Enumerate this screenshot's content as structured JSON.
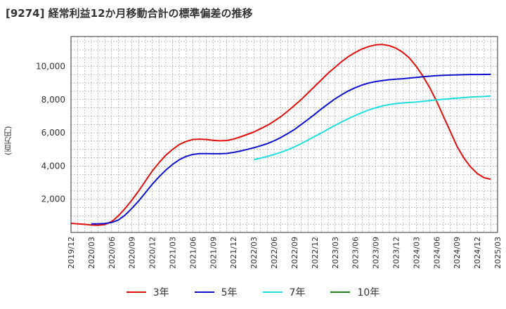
{
  "title": "[9274]  経常利益12か月移動合計の標準偏差の推移",
  "chart_data": {
    "type": "line",
    "title": "[9274]  経常利益12か月移動合計の標準偏差の推移",
    "ylabel": "(百万円)",
    "xlabel": "",
    "ylim": [
      0,
      11800
    ],
    "yticks": [
      2000,
      4000,
      6000,
      8000,
      10000
    ],
    "ytick_labels": [
      "2,000",
      "4,000",
      "6,000",
      "8,000",
      "10,000"
    ],
    "xlim": [
      "2019-12",
      "2025-03"
    ],
    "xtick_labels": [
      "2019/12",
      "2020/03",
      "2020/06",
      "2020/09",
      "2020/12",
      "2021/03",
      "2021/06",
      "2021/09",
      "2021/12",
      "2022/03",
      "2022/06",
      "2022/09",
      "2022/12",
      "2023/03",
      "2023/06",
      "2023/09",
      "2023/12",
      "2024/03",
      "2024/06",
      "2024/09",
      "2024/12",
      "2025/03"
    ],
    "grid": true,
    "legend_position": "bottom",
    "series": [
      {
        "name": "3年",
        "color": "#dd1111",
        "points": [
          [
            "2019-12",
            550
          ],
          [
            "2020-01",
            520
          ],
          [
            "2020-02",
            490
          ],
          [
            "2020-03",
            450
          ],
          [
            "2020-04",
            430
          ],
          [
            "2020-05",
            480
          ],
          [
            "2020-06",
            650
          ],
          [
            "2020-07",
            1000
          ],
          [
            "2020-08",
            1450
          ],
          [
            "2020-09",
            1950
          ],
          [
            "2020-10",
            2500
          ],
          [
            "2020-11",
            3100
          ],
          [
            "2020-12",
            3700
          ],
          [
            "2021-01",
            4200
          ],
          [
            "2021-02",
            4650
          ],
          [
            "2021-03",
            5000
          ],
          [
            "2021-04",
            5300
          ],
          [
            "2021-05",
            5480
          ],
          [
            "2021-06",
            5600
          ],
          [
            "2021-07",
            5620
          ],
          [
            "2021-08",
            5600
          ],
          [
            "2021-09",
            5550
          ],
          [
            "2021-10",
            5520
          ],
          [
            "2021-11",
            5540
          ],
          [
            "2021-12",
            5620
          ],
          [
            "2022-01",
            5750
          ],
          [
            "2022-02",
            5900
          ],
          [
            "2022-03",
            6050
          ],
          [
            "2022-04",
            6250
          ],
          [
            "2022-05",
            6450
          ],
          [
            "2022-06",
            6700
          ],
          [
            "2022-07",
            6980
          ],
          [
            "2022-08",
            7300
          ],
          [
            "2022-09",
            7650
          ],
          [
            "2022-10",
            8000
          ],
          [
            "2022-11",
            8400
          ],
          [
            "2022-12",
            8800
          ],
          [
            "2023-01",
            9200
          ],
          [
            "2023-02",
            9600
          ],
          [
            "2023-03",
            9950
          ],
          [
            "2023-04",
            10300
          ],
          [
            "2023-05",
            10600
          ],
          [
            "2023-06",
            10850
          ],
          [
            "2023-07",
            11050
          ],
          [
            "2023-08",
            11200
          ],
          [
            "2023-09",
            11300
          ],
          [
            "2023-10",
            11320
          ],
          [
            "2023-11",
            11250
          ],
          [
            "2023-12",
            11100
          ],
          [
            "2024-01",
            10850
          ],
          [
            "2024-02",
            10500
          ],
          [
            "2024-03",
            10000
          ],
          [
            "2024-04",
            9400
          ],
          [
            "2024-05",
            8700
          ],
          [
            "2024-06",
            7900
          ],
          [
            "2024-07",
            7000
          ],
          [
            "2024-08",
            6100
          ],
          [
            "2024-09",
            5200
          ],
          [
            "2024-10",
            4500
          ],
          [
            "2024-11",
            3950
          ],
          [
            "2024-12",
            3550
          ],
          [
            "2025-01",
            3300
          ],
          [
            "2025-02",
            3200
          ]
        ]
      },
      {
        "name": "5年",
        "color": "#1111cc",
        "points": [
          [
            "2020-03",
            520
          ],
          [
            "2020-04",
            520
          ],
          [
            "2020-05",
            540
          ],
          [
            "2020-06",
            600
          ],
          [
            "2020-07",
            750
          ],
          [
            "2020-08",
            1050
          ],
          [
            "2020-09",
            1450
          ],
          [
            "2020-10",
            1900
          ],
          [
            "2020-11",
            2400
          ],
          [
            "2020-12",
            2900
          ],
          [
            "2021-01",
            3350
          ],
          [
            "2021-02",
            3750
          ],
          [
            "2021-03",
            4100
          ],
          [
            "2021-04",
            4380
          ],
          [
            "2021-05",
            4580
          ],
          [
            "2021-06",
            4700
          ],
          [
            "2021-07",
            4750
          ],
          [
            "2021-08",
            4750
          ],
          [
            "2021-09",
            4740
          ],
          [
            "2021-10",
            4740
          ],
          [
            "2021-11",
            4760
          ],
          [
            "2021-12",
            4820
          ],
          [
            "2022-01",
            4900
          ],
          [
            "2022-02",
            5000
          ],
          [
            "2022-03",
            5100
          ],
          [
            "2022-04",
            5220
          ],
          [
            "2022-05",
            5350
          ],
          [
            "2022-06",
            5520
          ],
          [
            "2022-07",
            5720
          ],
          [
            "2022-08",
            5950
          ],
          [
            "2022-09",
            6200
          ],
          [
            "2022-10",
            6500
          ],
          [
            "2022-11",
            6800
          ],
          [
            "2022-12",
            7120
          ],
          [
            "2023-01",
            7450
          ],
          [
            "2023-02",
            7750
          ],
          [
            "2023-03",
            8050
          ],
          [
            "2023-04",
            8300
          ],
          [
            "2023-05",
            8530
          ],
          [
            "2023-06",
            8720
          ],
          [
            "2023-07",
            8880
          ],
          [
            "2023-08",
            9000
          ],
          [
            "2023-09",
            9090
          ],
          [
            "2023-10",
            9150
          ],
          [
            "2023-11",
            9200
          ],
          [
            "2023-12",
            9230
          ],
          [
            "2024-01",
            9260
          ],
          [
            "2024-02",
            9300
          ],
          [
            "2024-03",
            9340
          ],
          [
            "2024-04",
            9380
          ],
          [
            "2024-05",
            9410
          ],
          [
            "2024-06",
            9440
          ],
          [
            "2024-07",
            9460
          ],
          [
            "2024-08",
            9480
          ],
          [
            "2024-09",
            9490
          ],
          [
            "2024-10",
            9500
          ],
          [
            "2024-11",
            9510
          ],
          [
            "2024-12",
            9510
          ],
          [
            "2025-01",
            9515
          ],
          [
            "2025-02",
            9520
          ]
        ]
      },
      {
        "name": "7年",
        "color": "#22dddd",
        "points": [
          [
            "2022-03",
            4380
          ],
          [
            "2022-04",
            4480
          ],
          [
            "2022-05",
            4580
          ],
          [
            "2022-06",
            4700
          ],
          [
            "2022-07",
            4830
          ],
          [
            "2022-08",
            4980
          ],
          [
            "2022-09",
            5150
          ],
          [
            "2022-10",
            5350
          ],
          [
            "2022-11",
            5560
          ],
          [
            "2022-12",
            5780
          ],
          [
            "2023-01",
            6000
          ],
          [
            "2023-02",
            6230
          ],
          [
            "2023-03",
            6450
          ],
          [
            "2023-04",
            6660
          ],
          [
            "2023-05",
            6860
          ],
          [
            "2023-06",
            7050
          ],
          [
            "2023-07",
            7220
          ],
          [
            "2023-08",
            7380
          ],
          [
            "2023-09",
            7510
          ],
          [
            "2023-10",
            7620
          ],
          [
            "2023-11",
            7700
          ],
          [
            "2023-12",
            7760
          ],
          [
            "2024-01",
            7800
          ],
          [
            "2024-02",
            7830
          ],
          [
            "2024-03",
            7860
          ],
          [
            "2024-04",
            7900
          ],
          [
            "2024-05",
            7940
          ],
          [
            "2024-06",
            7980
          ],
          [
            "2024-07",
            8020
          ],
          [
            "2024-08",
            8060
          ],
          [
            "2024-09",
            8090
          ],
          [
            "2024-10",
            8120
          ],
          [
            "2024-11",
            8150
          ],
          [
            "2024-12",
            8170
          ],
          [
            "2025-01",
            8190
          ],
          [
            "2025-02",
            8220
          ]
        ]
      },
      {
        "name": "10年",
        "color": "#228822",
        "points": []
      }
    ]
  }
}
